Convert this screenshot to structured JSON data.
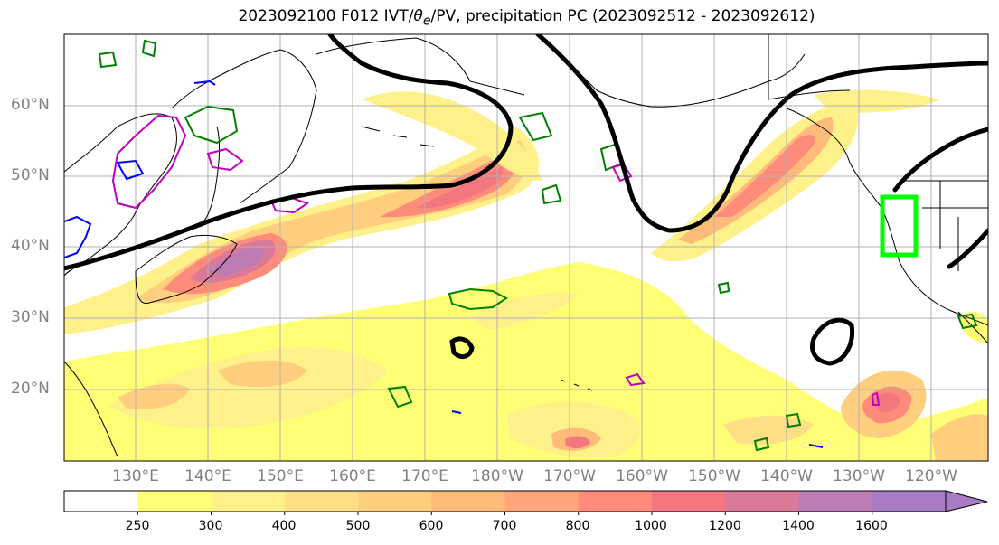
{
  "title": {
    "prefix": "2023092100 F012 IVT/",
    "theta": "θ",
    "theta_sub": "e",
    "suffix": "/PV, precipitation PC (2023092512 - 2023092612)"
  },
  "map": {
    "lat_labels": [
      "60°N",
      "50°N",
      "40°N",
      "30°N",
      "20°N"
    ],
    "lon_labels": [
      "130°E",
      "140°E",
      "150°E",
      "160°E",
      "170°E",
      "180°W",
      "170°W",
      "160°W",
      "150°W",
      "140°W",
      "130°W",
      "120°W"
    ],
    "colors": {
      "jet_contour": "#000000",
      "coast": "#000000",
      "theta_e_contour": "#008000",
      "pv_contour_magenta": "#c000c0",
      "pv_contour_blue": "#0000ff",
      "target_box": "#00ff00",
      "grid": "#b0b0b0"
    }
  },
  "colorbar": {
    "levels": [
      "250",
      "300",
      "400",
      "500",
      "600",
      "700",
      "800",
      "1000",
      "1200",
      "1400",
      "1600"
    ],
    "colors": [
      "#ffffff",
      "#ffff75",
      "#fff18a",
      "#ffdf85",
      "#ffce7e",
      "#ffbb7a",
      "#ffa57a",
      "#ff8c7a",
      "#f2777f",
      "#d97a9a",
      "#bb7db3",
      "#a87cc4"
    ]
  }
}
